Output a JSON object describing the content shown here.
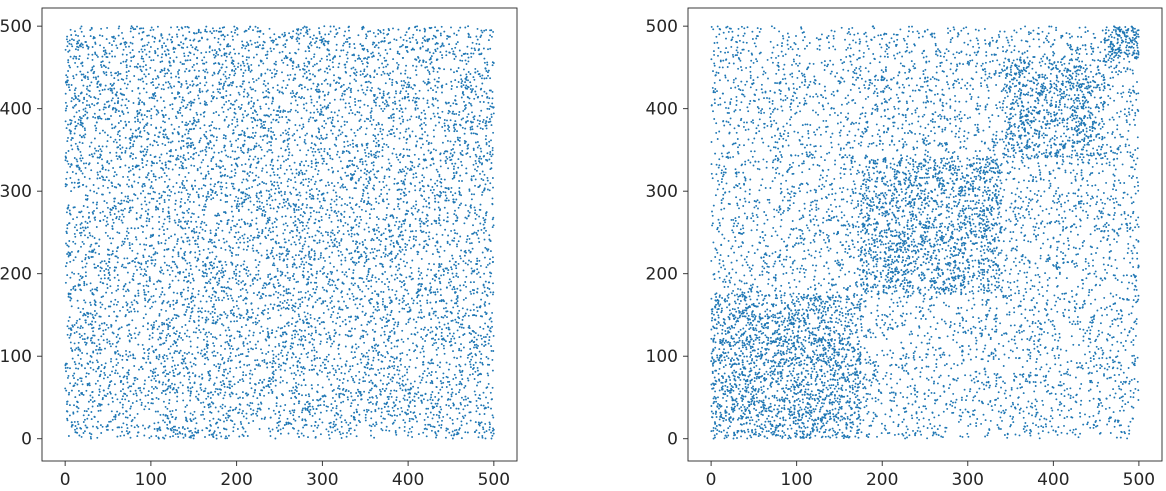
{
  "chart_data": [
    {
      "type": "scatter",
      "title": "",
      "xlabel": "",
      "ylabel": "",
      "xlim": [
        -27,
        527
      ],
      "ylim": [
        -27,
        522
      ],
      "xticks": [
        0,
        100,
        200,
        300,
        400,
        500
      ],
      "yticks": [
        0,
        100,
        200,
        300,
        400,
        500
      ],
      "grid": false,
      "marker_color": "#1f77b4",
      "distribution": "uniform",
      "n_points": 9000,
      "series": [
        {
          "sample_points": [
            [
              12,
              8
            ],
            [
              95,
              430
            ],
            [
              210,
              260
            ],
            [
              330,
              355
            ],
            [
              455,
              360
            ],
            [
              480,
              40
            ],
            [
              140,
              150
            ],
            [
              270,
              130
            ],
            [
              60,
              320
            ],
            [
              395,
              215
            ]
          ]
        }
      ]
    },
    {
      "type": "scatter",
      "title": "",
      "xlabel": "",
      "ylabel": "",
      "xlim": [
        -27,
        527
      ],
      "ylim": [
        -27,
        522
      ],
      "xticks": [
        0,
        100,
        200,
        300,
        400,
        500
      ],
      "yticks": [
        0,
        100,
        200,
        300,
        400,
        500
      ],
      "grid": false,
      "marker_color": "#1f77b4",
      "n_points": 9500,
      "background_points": 6000,
      "clusters": [
        {
          "x_range": [
            0,
            175
          ],
          "y_range": [
            0,
            175
          ],
          "points": 1500
        },
        {
          "x_range": [
            175,
            340
          ],
          "y_range": [
            175,
            340
          ],
          "points": 1200
        },
        {
          "x_range": [
            340,
            460
          ],
          "y_range": [
            340,
            460
          ],
          "points": 650
        },
        {
          "x_range": [
            460,
            500
          ],
          "y_range": [
            460,
            500
          ],
          "points": 150
        }
      ],
      "series": [
        {
          "sample_points": [
            [
              15,
              10
            ],
            [
              90,
              60
            ],
            [
              140,
              120
            ],
            [
              220,
              250
            ],
            [
              290,
              300
            ],
            [
              380,
              420
            ],
            [
              430,
              360
            ],
            [
              480,
              480
            ],
            [
              60,
              450
            ],
            [
              450,
              120
            ]
          ]
        }
      ]
    }
  ]
}
